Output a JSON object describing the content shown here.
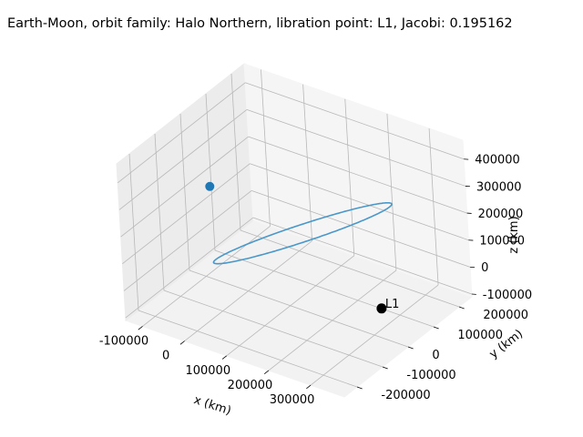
{
  "chart_data": {
    "type": "line3d",
    "title": "Earth-Moon, orbit family: Halo Northern, libration point: L1, Jacobi: 0.195162",
    "xlabel": "x (km)",
    "ylabel": "y (km)",
    "zlabel": "z (km)",
    "x_ticks": [
      -100000,
      0,
      100000,
      200000,
      300000
    ],
    "y_ticks": [
      -200000,
      -100000,
      0,
      100000,
      200000
    ],
    "z_ticks": [
      -100000,
      0,
      100000,
      200000,
      300000,
      400000
    ],
    "xlim": [
      -140000,
      380000
    ],
    "ylim": [
      -250000,
      250000
    ],
    "zlim": [
      -110000,
      470000
    ],
    "grid": true,
    "orbit": {
      "color": "#4a97c9",
      "center": [
        140000,
        0,
        180000
      ],
      "x_amplitude": 185000,
      "y_amplitude": 185000,
      "z_amplitude": 235000,
      "z_phase_deg": 27
    },
    "start_marker": {
      "x": -40000,
      "y": -60000,
      "z": 300000,
      "color": "#1f77b4"
    },
    "libration_point": {
      "label": "L1",
      "x": 321000,
      "y": 0,
      "z": 0,
      "color": "#000000"
    }
  }
}
